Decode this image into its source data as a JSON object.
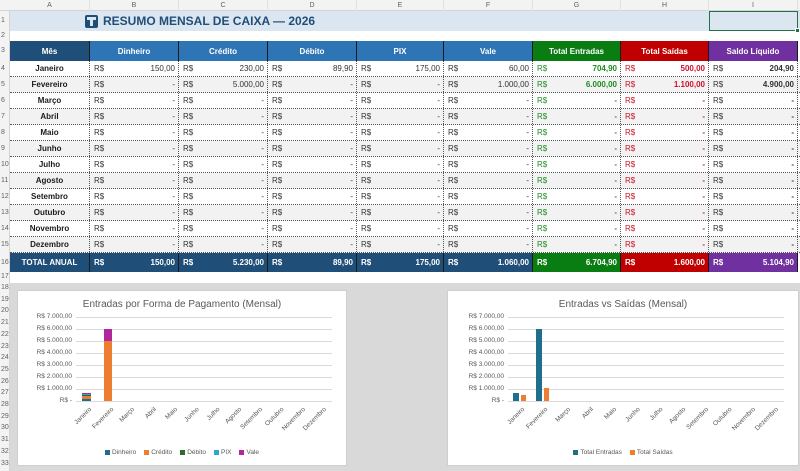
{
  "sheet": {
    "column_letters": [
      "A",
      "B",
      "C",
      "D",
      "E",
      "F",
      "G",
      "H",
      "I"
    ],
    "row_numbers": [
      "1",
      "2",
      "3",
      "4",
      "5",
      "6",
      "7",
      "8",
      "9",
      "10",
      "11",
      "12",
      "13",
      "14",
      "15",
      "16",
      "17",
      "18",
      "19",
      "20",
      "21",
      "22",
      "23",
      "24",
      "25",
      "26",
      "27",
      "28",
      "29",
      "30",
      "31",
      "32",
      "33"
    ],
    "selected_cell": "I1"
  },
  "title": {
    "icon": "table-icon",
    "text": "RESUMO MENSAL DE CAIXA — 2026"
  },
  "colors": {
    "title_bg": "#dce6f0",
    "title_text": "#1f4e79",
    "header_dark": "#1f4e79",
    "header_blue": "#2e75b6",
    "header_green": "#0a7d12",
    "header_red": "#c00000",
    "header_purple": "#7030a0",
    "total_blue": "#1f4e79",
    "entradas_text": "#1e8c1e",
    "saidas_text": "#d10c2a"
  },
  "table": {
    "headers": [
      "Mês",
      "Dinheiro",
      "Crédito",
      "Débito",
      "PIX",
      "Vale",
      "Total Entradas",
      "Total Saídas",
      "Saldo Líquido"
    ],
    "currency": "R$",
    "rows": [
      {
        "month": "Janeiro",
        "values": [
          "150,00",
          "230,00",
          "89,90",
          "175,00",
          "60,00",
          "704,90",
          "500,00",
          "204,90"
        ]
      },
      {
        "month": "Fevereiro",
        "values": [
          "-",
          "5.000,00",
          "-",
          "-",
          "1.000,00",
          "6.000,00",
          "1.100,00",
          "4.900,00"
        ]
      },
      {
        "month": "Março",
        "values": [
          "-",
          "-",
          "-",
          "-",
          "-",
          "-",
          "-",
          "-"
        ]
      },
      {
        "month": "Abril",
        "values": [
          "-",
          "-",
          "-",
          "-",
          "-",
          "-",
          "-",
          "-"
        ]
      },
      {
        "month": "Maio",
        "values": [
          "-",
          "-",
          "-",
          "-",
          "-",
          "-",
          "-",
          "-"
        ]
      },
      {
        "month": "Junho",
        "values": [
          "-",
          "-",
          "-",
          "-",
          "-",
          "-",
          "-",
          "-"
        ]
      },
      {
        "month": "Julho",
        "values": [
          "-",
          "-",
          "-",
          "-",
          "-",
          "-",
          "-",
          "-"
        ]
      },
      {
        "month": "Agosto",
        "values": [
          "-",
          "-",
          "-",
          "-",
          "-",
          "-",
          "-",
          "-"
        ]
      },
      {
        "month": "Setembro",
        "values": [
          "-",
          "-",
          "-",
          "-",
          "-",
          "-",
          "-",
          "-"
        ]
      },
      {
        "month": "Outubro",
        "values": [
          "-",
          "-",
          "-",
          "-",
          "-",
          "-",
          "-",
          "-"
        ]
      },
      {
        "month": "Novembro",
        "values": [
          "-",
          "-",
          "-",
          "-",
          "-",
          "-",
          "-",
          "-"
        ]
      },
      {
        "month": "Dezembro",
        "values": [
          "-",
          "-",
          "-",
          "-",
          "-",
          "-",
          "-",
          "-"
        ]
      }
    ],
    "total": {
      "label": "TOTAL ANUAL",
      "values": [
        "150,00",
        "5.230,00",
        "89,90",
        "175,00",
        "1.060,00",
        "6.704,90",
        "1.600,00",
        "5.104,90"
      ]
    }
  },
  "chart_data": [
    {
      "type": "bar",
      "stacked": true,
      "title": "Entradas por Forma de Pagamento (Mensal)",
      "categories": [
        "Janeiro",
        "Fevereiro",
        "Março",
        "Abril",
        "Maio",
        "Junho",
        "Julho",
        "Agosto",
        "Setembro",
        "Outubro",
        "Novembro",
        "Dezembro"
      ],
      "series": [
        {
          "name": "Dinheiro",
          "color": "#1f6e8c",
          "values": [
            150,
            0,
            0,
            0,
            0,
            0,
            0,
            0,
            0,
            0,
            0,
            0
          ]
        },
        {
          "name": "Crédito",
          "color": "#ed7d31",
          "values": [
            230,
            5000,
            0,
            0,
            0,
            0,
            0,
            0,
            0,
            0,
            0,
            0
          ]
        },
        {
          "name": "Débito",
          "color": "#2e6b2e",
          "values": [
            89.9,
            0,
            0,
            0,
            0,
            0,
            0,
            0,
            0,
            0,
            0,
            0
          ]
        },
        {
          "name": "PIX",
          "color": "#2ea8c8",
          "values": [
            175,
            0,
            0,
            0,
            0,
            0,
            0,
            0,
            0,
            0,
            0,
            0
          ]
        },
        {
          "name": "Vale",
          "color": "#b0289b",
          "values": [
            60,
            1000,
            0,
            0,
            0,
            0,
            0,
            0,
            0,
            0,
            0,
            0
          ]
        }
      ],
      "yticks": [
        "R$ 7.000,00",
        "R$ 6.000,00",
        "R$ 5.000,00",
        "R$ 4.000,00",
        "R$ 3.000,00",
        "R$ 2.000,00",
        "R$ 1.000,00",
        "R$ -"
      ],
      "ylim": [
        0,
        7000
      ],
      "xlabel": "",
      "ylabel": "",
      "grid": true,
      "legend_position": "bottom"
    },
    {
      "type": "bar",
      "stacked": false,
      "title": "Entradas vs Saídas (Mensal)",
      "categories": [
        "Janeiro",
        "Fevereiro",
        "Março",
        "Abril",
        "Maio",
        "Junho",
        "Julho",
        "Agosto",
        "Setembro",
        "Outubro",
        "Novembro",
        "Dezembro"
      ],
      "series": [
        {
          "name": "Total Entradas",
          "color": "#1f6e8c",
          "values": [
            704.9,
            6000,
            0,
            0,
            0,
            0,
            0,
            0,
            0,
            0,
            0,
            0
          ]
        },
        {
          "name": "Total Saídas",
          "color": "#ed7d31",
          "values": [
            500,
            1100,
            0,
            0,
            0,
            0,
            0,
            0,
            0,
            0,
            0,
            0
          ]
        }
      ],
      "yticks": [
        "R$ 7.000,00",
        "R$ 6.000,00",
        "R$ 5.000,00",
        "R$ 4.000,00",
        "R$ 3.000,00",
        "R$ 2.000,00",
        "R$ 1.000,00",
        "R$ -"
      ],
      "ylim": [
        0,
        7000
      ],
      "xlabel": "",
      "ylabel": "",
      "grid": true,
      "legend_position": "bottom"
    }
  ]
}
